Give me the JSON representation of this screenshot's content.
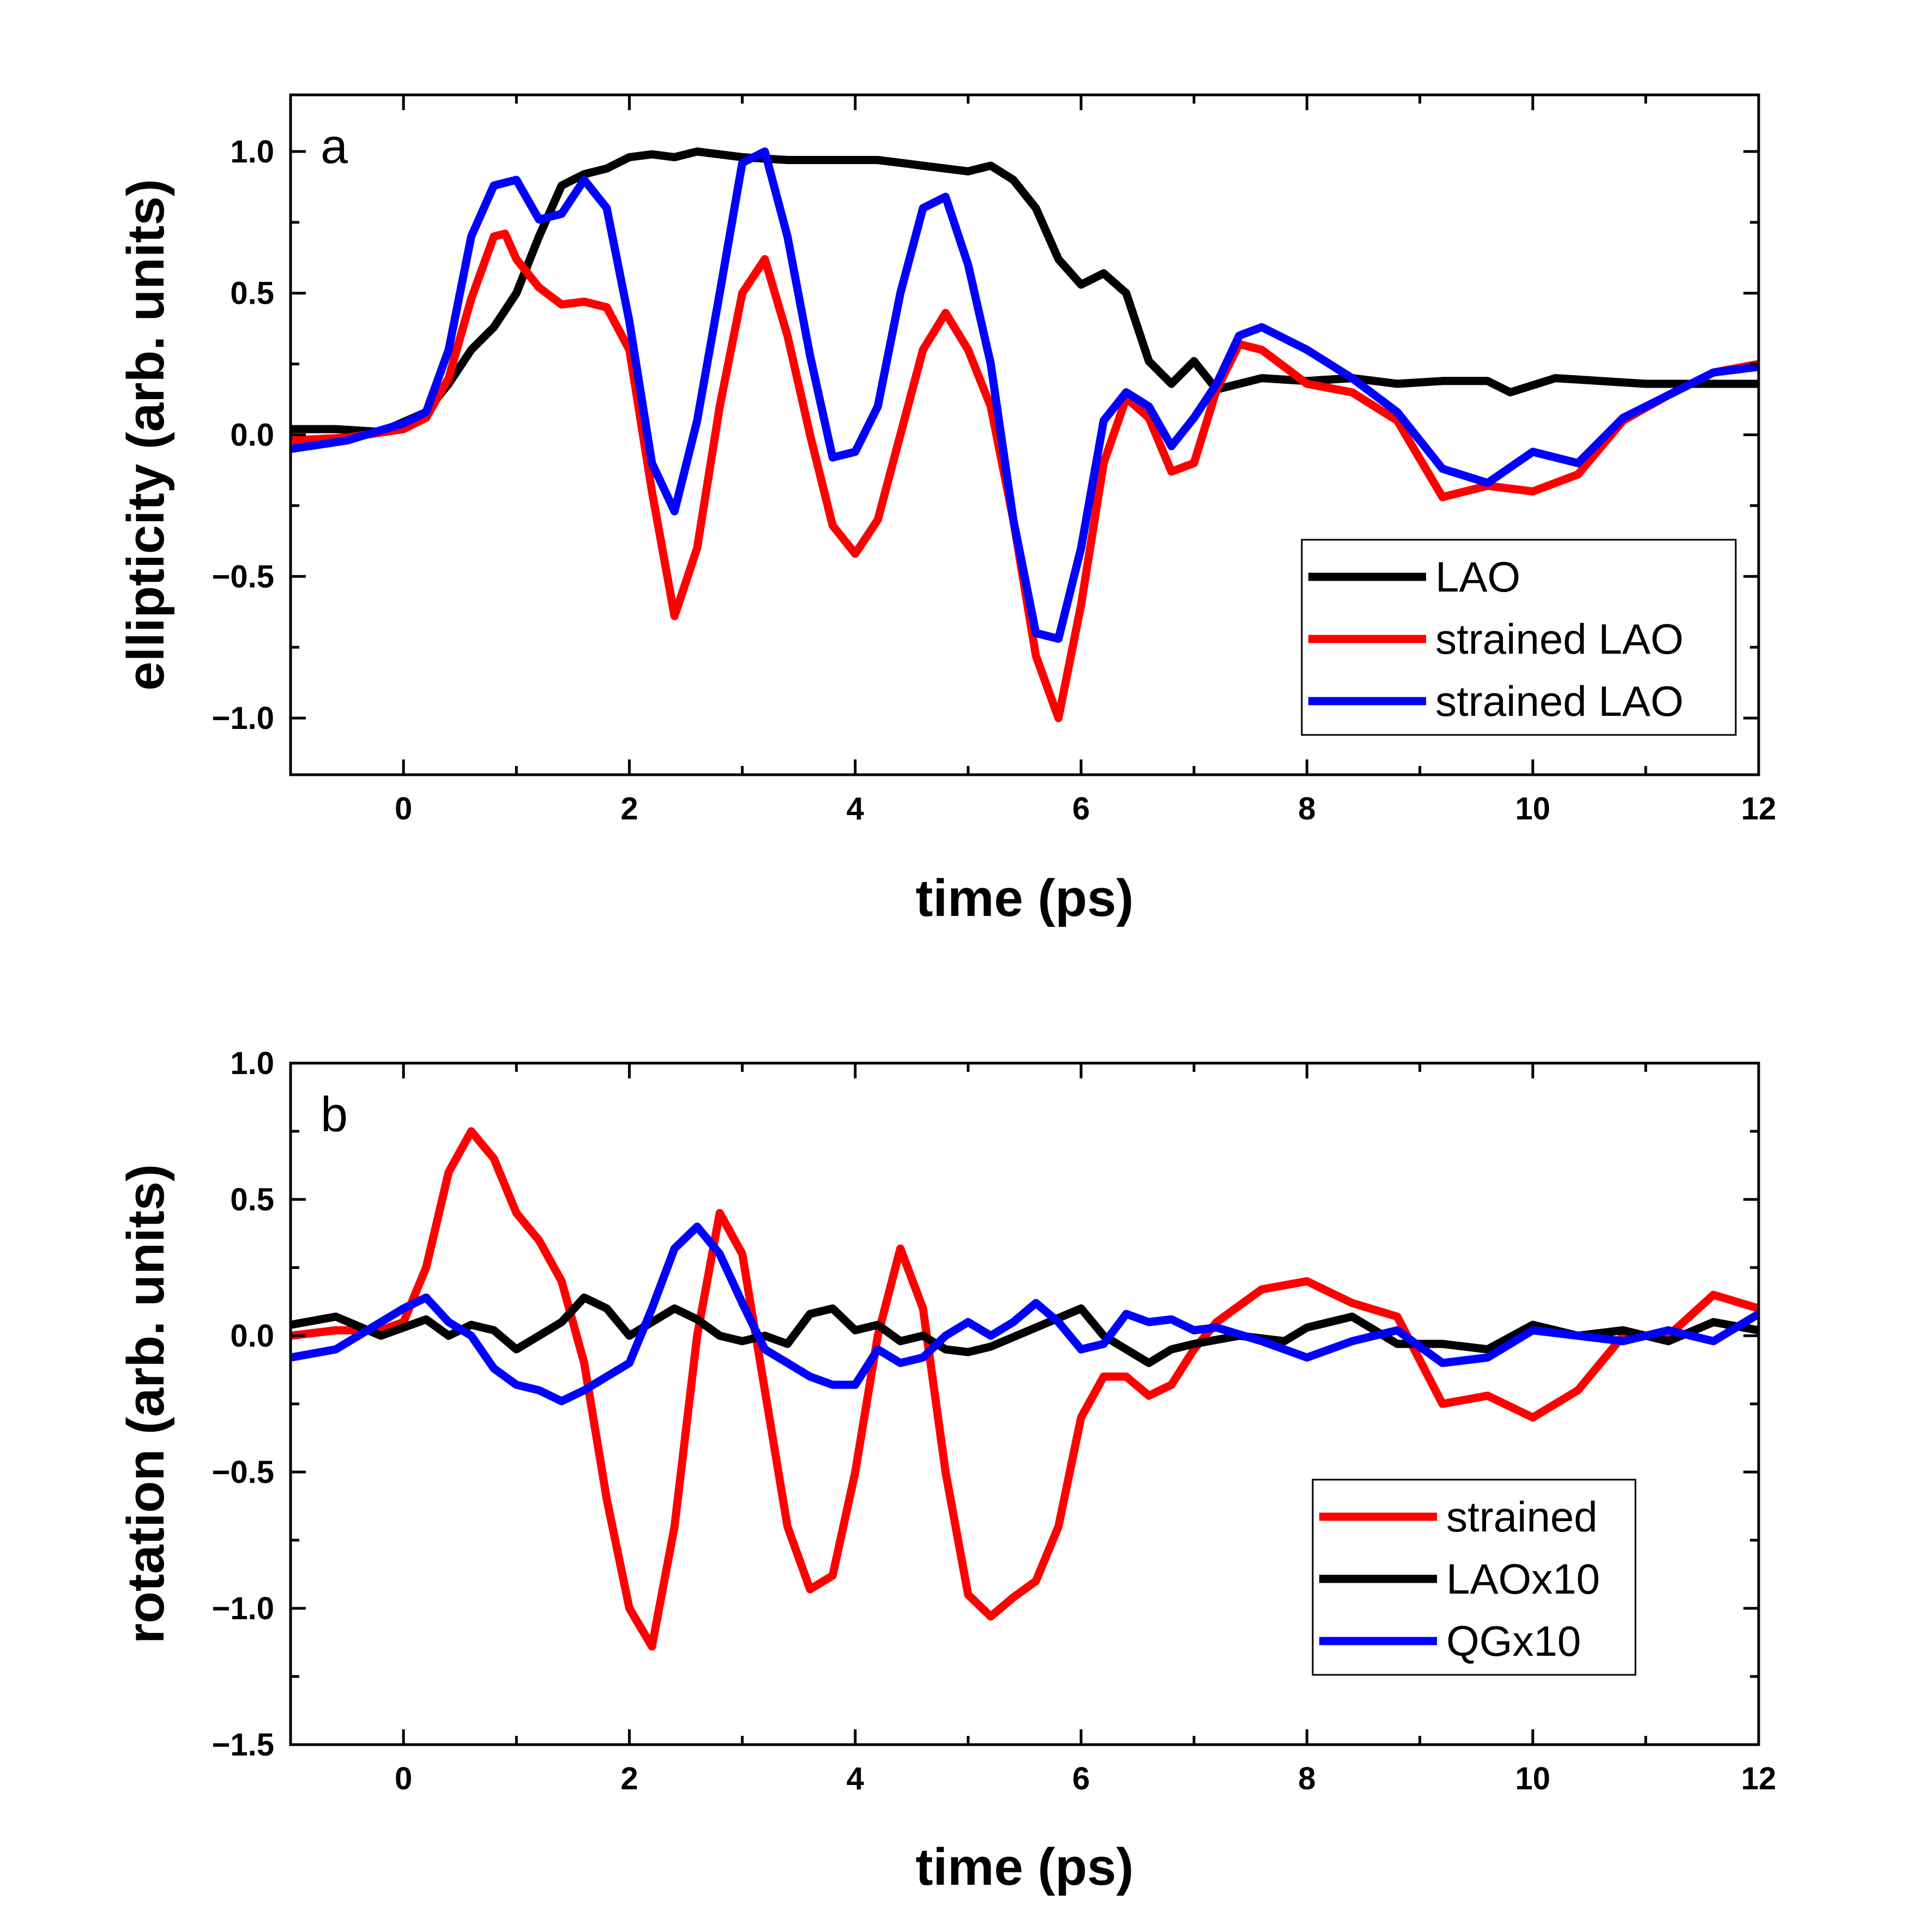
{
  "chart_data": [
    {
      "type": "line",
      "panel_label": "a",
      "xlabel": "time (ps)",
      "ylabel": "ellipticity (arb. units)",
      "xlim": [
        -1,
        12
      ],
      "ylim": [
        -1.2,
        1.2
      ],
      "xticks": [
        0,
        2,
        4,
        6,
        8,
        10,
        12
      ],
      "yticks": [
        -1.0,
        -0.5,
        0.0,
        0.5,
        1.0
      ],
      "ytick_labels": [
        "−1.0",
        "−0.5",
        "0.0",
        "0.5",
        "1.0"
      ],
      "grid": false,
      "legend_position": "bottom-right",
      "series": [
        {
          "name": "LAO",
          "color": "#000000",
          "x": [
            -1,
            -0.6,
            -0.2,
            0.2,
            0.4,
            0.6,
            0.8,
            1.0,
            1.2,
            1.4,
            1.6,
            1.8,
            2.0,
            2.2,
            2.4,
            2.6,
            3.0,
            3.4,
            3.8,
            4.2,
            4.6,
            5.0,
            5.2,
            5.4,
            5.6,
            5.8,
            6.0,
            6.2,
            6.4,
            6.6,
            6.8,
            7.0,
            7.2,
            7.6,
            8.0,
            8.4,
            8.8,
            9.2,
            9.6,
            9.8,
            10.2,
            10.6,
            11.0,
            11.4,
            12.0
          ],
          "y": [
            0.02,
            0.02,
            0.01,
            0.08,
            0.18,
            0.3,
            0.38,
            0.5,
            0.7,
            0.88,
            0.92,
            0.94,
            0.98,
            0.99,
            0.98,
            1.0,
            0.98,
            0.97,
            0.97,
            0.97,
            0.95,
            0.93,
            0.95,
            0.9,
            0.8,
            0.62,
            0.53,
            0.57,
            0.5,
            0.26,
            0.18,
            0.26,
            0.16,
            0.2,
            0.19,
            0.2,
            0.18,
            0.19,
            0.19,
            0.15,
            0.2,
            0.19,
            0.18,
            0.18,
            0.18
          ]
        },
        {
          "name": "strained LAO",
          "color": "#ff0000",
          "x": [
            -1,
            -0.5,
            0,
            0.2,
            0.4,
            0.6,
            0.8,
            0.9,
            1.0,
            1.2,
            1.4,
            1.6,
            1.8,
            2.0,
            2.2,
            2.4,
            2.6,
            2.8,
            3.0,
            3.2,
            3.4,
            3.6,
            3.8,
            4.0,
            4.2,
            4.4,
            4.6,
            4.8,
            5.0,
            5.2,
            5.4,
            5.6,
            5.8,
            6.0,
            6.2,
            6.4,
            6.6,
            6.8,
            7.0,
            7.2,
            7.4,
            7.6,
            7.8,
            8.0,
            8.4,
            8.8,
            9.2,
            9.6,
            10.0,
            10.4,
            10.8,
            11.2,
            11.6,
            12.0
          ],
          "y": [
            -0.02,
            -0.01,
            0.02,
            0.06,
            0.2,
            0.48,
            0.7,
            0.71,
            0.62,
            0.52,
            0.46,
            0.47,
            0.45,
            0.3,
            -0.2,
            -0.64,
            -0.4,
            0.1,
            0.5,
            0.62,
            0.35,
            0.0,
            -0.32,
            -0.42,
            -0.3,
            0.0,
            0.3,
            0.43,
            0.3,
            0.1,
            -0.3,
            -0.78,
            -1.0,
            -0.6,
            -0.1,
            0.13,
            0.06,
            -0.13,
            -0.1,
            0.16,
            0.32,
            0.3,
            0.24,
            0.18,
            0.15,
            0.05,
            -0.22,
            -0.18,
            -0.2,
            -0.14,
            0.05,
            0.14,
            0.22,
            0.25
          ]
        },
        {
          "name": "strained LAO",
          "color": "#0000ff",
          "x": [
            -1,
            -0.5,
            0,
            0.2,
            0.4,
            0.6,
            0.8,
            1.0,
            1.2,
            1.4,
            1.6,
            1.8,
            2.0,
            2.2,
            2.4,
            2.6,
            2.8,
            3.0,
            3.2,
            3.4,
            3.6,
            3.8,
            4.0,
            4.2,
            4.4,
            4.6,
            4.8,
            5.0,
            5.2,
            5.4,
            5.6,
            5.8,
            6.0,
            6.2,
            6.4,
            6.6,
            6.8,
            7.0,
            7.2,
            7.4,
            7.6,
            7.8,
            8.0,
            8.4,
            8.8,
            9.2,
            9.6,
            10.0,
            10.4,
            10.8,
            11.2,
            11.6,
            12.0
          ],
          "y": [
            -0.05,
            -0.02,
            0.04,
            0.08,
            0.3,
            0.7,
            0.88,
            0.9,
            0.76,
            0.78,
            0.9,
            0.8,
            0.4,
            -0.1,
            -0.27,
            0.05,
            0.5,
            0.96,
            1.0,
            0.7,
            0.28,
            -0.08,
            -0.06,
            0.1,
            0.5,
            0.8,
            0.84,
            0.6,
            0.25,
            -0.3,
            -0.7,
            -0.72,
            -0.4,
            0.05,
            0.15,
            0.1,
            -0.04,
            0.06,
            0.18,
            0.35,
            0.38,
            0.34,
            0.3,
            0.2,
            0.08,
            -0.12,
            -0.17,
            -0.06,
            -0.1,
            0.06,
            0.14,
            0.22,
            0.24
          ]
        }
      ]
    },
    {
      "type": "line",
      "panel_label": "b",
      "xlabel": "time (ps)",
      "ylabel": "rotation (arb. units)",
      "xlim": [
        -1,
        12
      ],
      "ylim": [
        -1.5,
        1.0
      ],
      "xticks": [
        0,
        2,
        4,
        6,
        8,
        10,
        12
      ],
      "yticks": [
        -1.5,
        -1.0,
        -0.5,
        0.0,
        0.5,
        1.0
      ],
      "ytick_labels": [
        "−1.5",
        "−1.0",
        "−0.5",
        "0.0",
        "0.5",
        "1.0"
      ],
      "grid": false,
      "legend_position": "bottom-right",
      "series": [
        {
          "name": "strained",
          "color": "#ff0000",
          "x": [
            -1,
            -0.6,
            -0.2,
            0,
            0.2,
            0.4,
            0.6,
            0.8,
            1.0,
            1.2,
            1.4,
            1.6,
            1.8,
            2.0,
            2.2,
            2.4,
            2.6,
            2.8,
            3.0,
            3.2,
            3.4,
            3.6,
            3.8,
            4.0,
            4.2,
            4.4,
            4.6,
            4.8,
            5.0,
            5.2,
            5.4,
            5.6,
            5.8,
            6.0,
            6.2,
            6.4,
            6.6,
            6.8,
            7.0,
            7.2,
            7.6,
            8.0,
            8.4,
            8.8,
            9.2,
            9.6,
            10.0,
            10.4,
            10.8,
            11.2,
            11.6,
            12.0
          ],
          "y": [
            0.0,
            0.02,
            0.02,
            0.05,
            0.25,
            0.6,
            0.75,
            0.65,
            0.45,
            0.35,
            0.2,
            -0.1,
            -0.6,
            -1.0,
            -1.14,
            -0.7,
            0.0,
            0.45,
            0.3,
            -0.2,
            -0.7,
            -0.93,
            -0.88,
            -0.5,
            0.0,
            0.32,
            0.1,
            -0.5,
            -0.95,
            -1.03,
            -0.96,
            -0.9,
            -0.7,
            -0.3,
            -0.15,
            -0.15,
            -0.22,
            -0.18,
            -0.05,
            0.05,
            0.17,
            0.2,
            0.12,
            0.07,
            -0.25,
            -0.22,
            -0.3,
            -0.2,
            0.0,
            0.0,
            0.15,
            0.1
          ]
        },
        {
          "name": "LAOx10",
          "color": "#000000",
          "x": [
            -1,
            -0.6,
            -0.2,
            0,
            0.2,
            0.4,
            0.6,
            0.8,
            1.0,
            1.2,
            1.4,
            1.6,
            1.8,
            2.0,
            2.2,
            2.4,
            2.6,
            2.8,
            3.0,
            3.2,
            3.4,
            3.6,
            3.8,
            4.0,
            4.2,
            4.4,
            4.6,
            4.8,
            5.0,
            5.2,
            5.6,
            6.0,
            6.2,
            6.4,
            6.6,
            6.8,
            7.0,
            7.4,
            7.8,
            8.0,
            8.4,
            8.8,
            9.2,
            9.6,
            10.0,
            10.4,
            10.8,
            11.2,
            11.6,
            12.0
          ],
          "y": [
            0.04,
            0.07,
            0.0,
            0.03,
            0.06,
            0.0,
            0.04,
            0.02,
            -0.05,
            0.0,
            0.05,
            0.14,
            0.1,
            0.0,
            0.05,
            0.1,
            0.06,
            0.0,
            -0.02,
            0.0,
            -0.03,
            0.08,
            0.1,
            0.02,
            0.04,
            -0.02,
            0.0,
            -0.05,
            -0.06,
            -0.04,
            0.03,
            0.1,
            0.0,
            -0.05,
            -0.1,
            -0.05,
            -0.03,
            0.0,
            -0.02,
            0.03,
            0.07,
            -0.03,
            -0.03,
            -0.05,
            0.04,
            0.0,
            0.02,
            -0.02,
            0.05,
            0.02
          ]
        },
        {
          "name": "QGx10",
          "color": "#0000ff",
          "x": [
            -1,
            -0.6,
            -0.2,
            0,
            0.2,
            0.4,
            0.6,
            0.8,
            1.0,
            1.2,
            1.4,
            1.6,
            1.8,
            2.0,
            2.2,
            2.4,
            2.6,
            2.8,
            3.0,
            3.2,
            3.4,
            3.6,
            3.8,
            4.0,
            4.2,
            4.4,
            4.6,
            4.8,
            5.0,
            5.2,
            5.4,
            5.6,
            5.8,
            6.0,
            6.2,
            6.4,
            6.6,
            6.8,
            7.0,
            7.2,
            7.6,
            8.0,
            8.4,
            8.8,
            9.2,
            9.6,
            10.0,
            10.4,
            10.8,
            11.2,
            11.6,
            12.0
          ],
          "y": [
            -0.08,
            -0.05,
            0.05,
            0.1,
            0.14,
            0.05,
            0.0,
            -0.12,
            -0.18,
            -0.2,
            -0.24,
            -0.2,
            -0.15,
            -0.1,
            0.1,
            0.32,
            0.4,
            0.3,
            0.12,
            -0.05,
            -0.1,
            -0.15,
            -0.18,
            -0.18,
            -0.05,
            -0.1,
            -0.08,
            0.0,
            0.05,
            0.0,
            0.05,
            0.12,
            0.05,
            -0.05,
            -0.03,
            0.08,
            0.05,
            0.06,
            0.02,
            0.03,
            -0.02,
            -0.08,
            -0.02,
            0.02,
            -0.1,
            -0.08,
            0.02,
            0.0,
            -0.02,
            0.02,
            -0.02,
            0.08
          ]
        }
      ]
    }
  ]
}
